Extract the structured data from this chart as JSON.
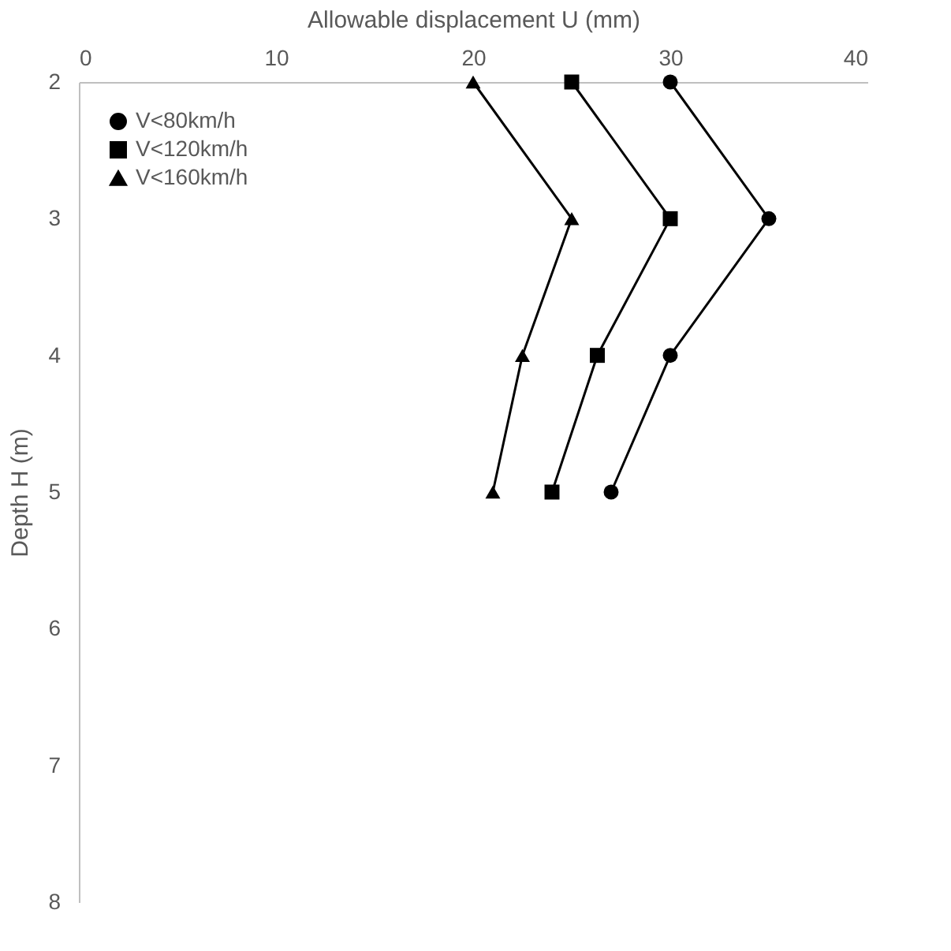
{
  "chart_data": {
    "type": "line",
    "xlabel": "Allowable displacement U (mm)",
    "ylabel": "Depth H (m)",
    "xlim": [
      0,
      40
    ],
    "xticks": [
      0,
      10,
      20,
      30,
      40
    ],
    "ylim": [
      8,
      2
    ],
    "yticks": [
      2,
      3,
      4,
      5,
      6,
      7,
      8
    ],
    "grid": false,
    "legend": "top left",
    "line_style": "solid",
    "series": [
      {
        "name": "V<80km/h",
        "color": "#000000",
        "marker": "circle",
        "x": [
          30,
          35,
          30,
          27
        ],
        "values": [
          2,
          3,
          4,
          5
        ]
      },
      {
        "name": "V<120km/h",
        "color": "#000000",
        "marker": "square",
        "x": [
          25,
          30,
          26.3,
          24
        ],
        "values": [
          2,
          3,
          4,
          5
        ]
      },
      {
        "name": "V<160km/h",
        "color": "#000000",
        "marker": "triangle",
        "x": [
          20,
          25,
          22.5,
          21
        ],
        "values": [
          2,
          3,
          4,
          5
        ]
      }
    ]
  }
}
